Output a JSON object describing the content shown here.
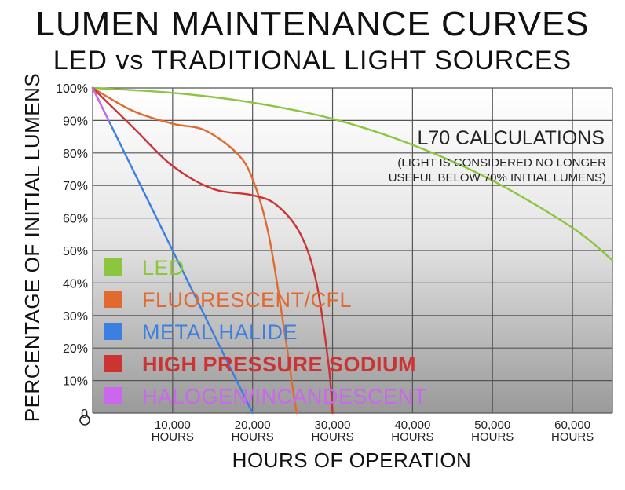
{
  "chart_data": {
    "type": "line",
    "title": "LUMEN MAINTENANCE CURVES",
    "subtitle": "LED vs TRADITIONAL LIGHT SOURCES",
    "ylabel": "PERCENTAGE OF INITIAL LUMENS",
    "xlabel": "HOURS OF OPERATION",
    "xlim": [
      0,
      65000
    ],
    "ylim": [
      0,
      100
    ],
    "grid": true,
    "y_ticks": [
      "0",
      "10%",
      "20%",
      "30%",
      "40%",
      "50%",
      "60%",
      "70%",
      "80%",
      "90%",
      "100%"
    ],
    "x_ticks": [
      {
        "value": 10000,
        "line1": "10,000",
        "line2": "HOURS"
      },
      {
        "value": 20000,
        "line1": "20,000",
        "line2": "HOURS"
      },
      {
        "value": 30000,
        "line1": "30,000",
        "line2": "HOURS"
      },
      {
        "value": 40000,
        "line1": "40,000",
        "line2": "HOURS"
      },
      {
        "value": 50000,
        "line1": "50,000",
        "line2": "HOURS"
      },
      {
        "value": 60000,
        "line1": "60,000",
        "line2": "HOURS"
      }
    ],
    "annotation": {
      "title": "L70 CALCULATIONS",
      "line1": "(LIGHT IS CONSIDERED NO LONGER",
      "line2": "USEFUL BELOW 70% INITIAL LUMENS)"
    },
    "legend_position": "left",
    "series": [
      {
        "name": "LED",
        "color": "#8cc63f",
        "x": [
          0,
          10000,
          20000,
          30000,
          40000,
          50000,
          60000,
          65000
        ],
        "y": [
          100,
          98.5,
          95.5,
          90.5,
          82.5,
          71.5,
          57,
          47
        ]
      },
      {
        "name": "FLUORESCENT/CFL",
        "color": "#e06a30",
        "x": [
          0,
          5000,
          10000,
          14000,
          18000,
          20000,
          22000,
          24000,
          25000,
          25500
        ],
        "y": [
          100,
          93,
          89,
          87,
          80,
          72,
          55,
          25,
          8,
          0
        ]
      },
      {
        "name": "METAL HALIDE",
        "color": "#3b7fe0",
        "x": [
          0,
          10000,
          20000
        ],
        "y": [
          100,
          50,
          0
        ]
      },
      {
        "name": "HIGH PRESSURE SODIUM",
        "color": "#cc3333",
        "x": [
          0,
          5000,
          10000,
          15000,
          20000,
          23000,
          26000,
          28000,
          29500,
          30000
        ],
        "y": [
          100,
          88,
          76,
          69,
          67,
          64,
          55,
          40,
          15,
          0
        ]
      },
      {
        "name": "HALOGEN/INCANDESCENT",
        "color": "#cc66ee",
        "x": [
          0,
          1000,
          2000
        ],
        "y": [
          100,
          95,
          90
        ]
      }
    ]
  }
}
